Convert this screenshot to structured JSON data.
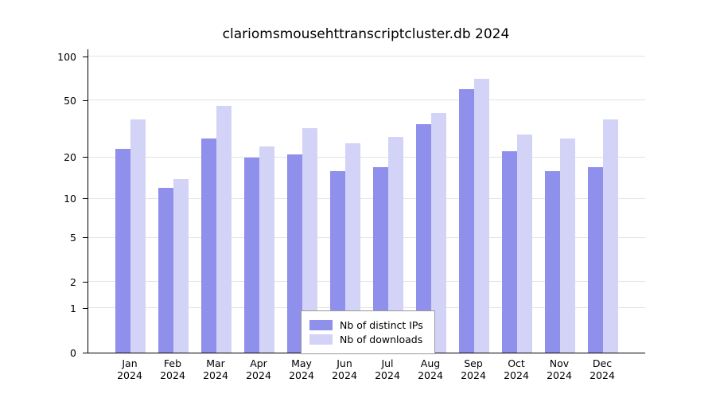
{
  "chart_data": {
    "type": "bar",
    "title": "clariomsmousehttranscriptcluster.db 2024",
    "categories": [
      "Jan 2024",
      "Feb 2024",
      "Mar 2024",
      "Apr 2024",
      "May 2024",
      "Jun 2024",
      "Jul 2024",
      "Aug 2024",
      "Sep 2024",
      "Oct 2024",
      "Nov 2024",
      "Dec 2024"
    ],
    "month_labels": [
      "Jan",
      "Feb",
      "Mar",
      "Apr",
      "May",
      "Jun",
      "Jul",
      "Aug",
      "Sep",
      "Oct",
      "Nov",
      "Dec"
    ],
    "year_label": "2024",
    "series": [
      {
        "name": "Nb of distinct IPs",
        "color": "#8f8fec",
        "values": [
          23,
          12,
          27,
          20,
          21,
          16,
          17,
          34,
          60,
          22,
          16,
          17
        ]
      },
      {
        "name": "Nb of downloads",
        "color": "#d3d3f7",
        "values": [
          37,
          14,
          46,
          24,
          32,
          25,
          28,
          41,
          70,
          29,
          27,
          37
        ]
      }
    ],
    "y_ticks": [
      0,
      1,
      2,
      5,
      10,
      20,
      50,
      100
    ],
    "y_scale": "log10(1+value)",
    "ylim": [
      0,
      100
    ],
    "grid": true,
    "legend_position": "bottom-center",
    "colors": {
      "grid": "#e3e3e3",
      "axis": "#000000",
      "background": "#ffffff"
    }
  }
}
